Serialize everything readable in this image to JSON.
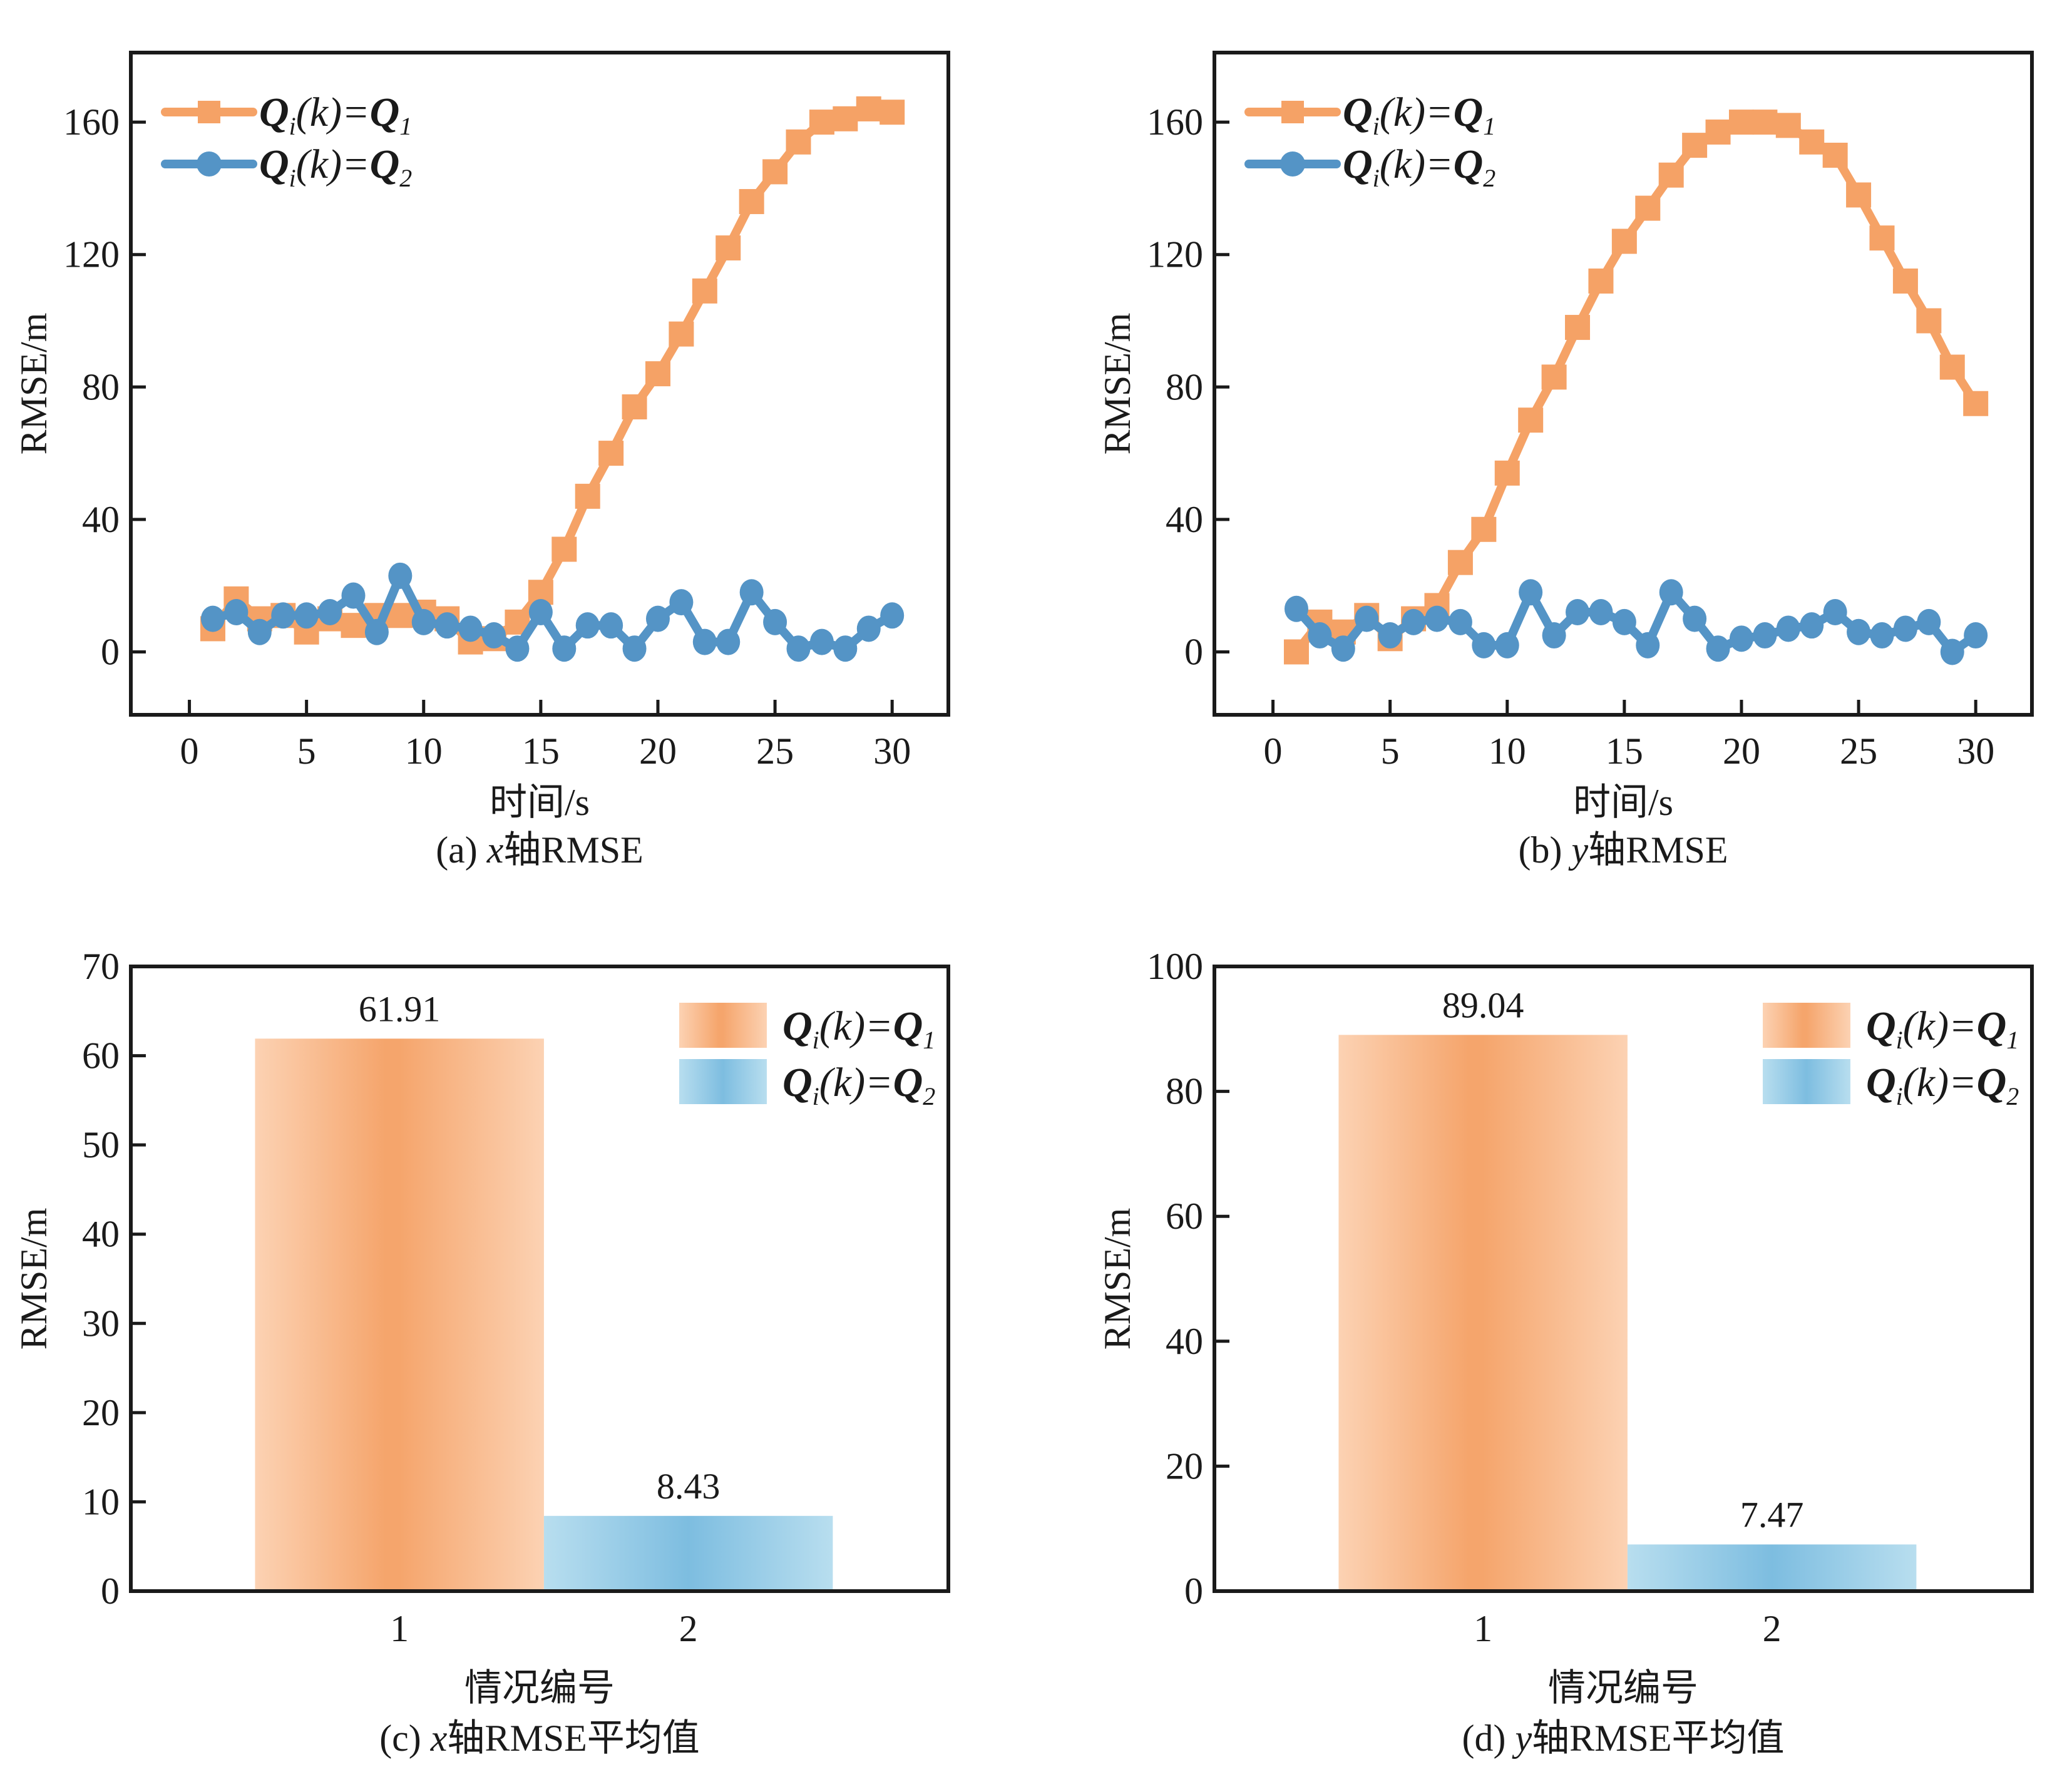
{
  "figure": {
    "legend_labels": {
      "q1": {
        "main": "Q",
        "sub_i": "i",
        "mid": "(k)=",
        "rhs": "Q",
        "sub_n": "1"
      },
      "q2": {
        "main": "Q",
        "sub_i": "i",
        "mid": "(k)=",
        "rhs": "Q",
        "sub_n": "2"
      }
    },
    "colors": {
      "q1_line": "#F5A266",
      "q2_line": "#5494C6",
      "q1_bar_edge": "#FCD2B3",
      "q1_bar_center": "#F5A56C",
      "q2_bar_edge": "#B8DEEF",
      "q2_bar_center": "#7DBDE0",
      "axis": "#1a1a1a"
    }
  },
  "chart_data": [
    {
      "id": "a",
      "type": "line",
      "caption": "(a) x轴RMSE",
      "caption_prefix": "(a) ",
      "caption_var": "x",
      "caption_suffix": "轴RMSE",
      "xlabel": "时间/s",
      "ylabel": "RMSE/m",
      "xlim": [
        -2.5,
        32.4
      ],
      "ylim": [
        -19,
        181
      ],
      "xticks": [
        0,
        5,
        10,
        15,
        20,
        25,
        30
      ],
      "yticks": [
        0,
        40,
        80,
        120,
        160
      ],
      "legend_position": "top-left",
      "x": [
        1,
        2,
        3,
        4,
        5,
        6,
        7,
        8,
        9,
        10,
        11,
        12,
        13,
        14,
        15,
        16,
        17,
        18,
        19,
        20,
        21,
        22,
        23,
        24,
        25,
        26,
        27,
        28,
        29,
        30
      ],
      "series": [
        {
          "name": "Qi(k)=Q1",
          "marker": "square",
          "color_key": "q1_line",
          "values": [
            7,
            16,
            10,
            11,
            6,
            10,
            8,
            11,
            11,
            12,
            10,
            3,
            4,
            9,
            18,
            31,
            47,
            60,
            74,
            84,
            96,
            109,
            122,
            136,
            145,
            154,
            160,
            161,
            164,
            163
          ]
        },
        {
          "name": "Qi(k)=Q2",
          "marker": "circle",
          "color_key": "q2_line",
          "values": [
            10,
            12,
            6,
            11,
            11,
            12,
            17,
            6,
            23,
            9,
            8,
            7,
            5,
            1,
            12,
            1,
            8,
            8,
            1,
            10,
            15,
            3,
            3,
            18,
            9,
            1,
            3,
            1,
            7,
            11
          ]
        }
      ]
    },
    {
      "id": "b",
      "type": "line",
      "caption": "(b) y轴RMSE",
      "caption_prefix": "(b) ",
      "caption_var": "y",
      "caption_suffix": "轴RMSE",
      "xlabel": "时间/s",
      "ylabel": "RMSE/m",
      "xlim": [
        -2.5,
        32.4
      ],
      "ylim": [
        -19,
        181
      ],
      "xticks": [
        0,
        5,
        10,
        15,
        20,
        25,
        30
      ],
      "yticks": [
        0,
        40,
        80,
        120,
        160
      ],
      "legend_position": "top-left",
      "x": [
        1,
        2,
        3,
        4,
        5,
        6,
        7,
        8,
        9,
        10,
        11,
        12,
        13,
        14,
        15,
        16,
        17,
        18,
        19,
        20,
        21,
        22,
        23,
        24,
        25,
        26,
        27,
        28,
        29,
        30
      ],
      "series": [
        {
          "name": "Qi(k)=Q1",
          "marker": "square",
          "color_key": "q1_line",
          "values": [
            0,
            9,
            6,
            11,
            4,
            10,
            14,
            27,
            37,
            54,
            70,
            83,
            98,
            112,
            124,
            134,
            144,
            153,
            157,
            160,
            160,
            159,
            154,
            150,
            138,
            125,
            112,
            100,
            86,
            75
          ]
        },
        {
          "name": "Qi(k)=Q2",
          "marker": "circle",
          "color_key": "q2_line",
          "values": [
            13,
            5,
            1,
            10,
            5,
            9,
            10,
            9,
            2,
            2,
            18,
            5,
            12,
            12,
            9,
            2,
            18,
            10,
            1,
            4,
            5,
            7,
            8,
            12,
            6,
            5,
            7,
            9,
            0,
            5
          ]
        }
      ]
    },
    {
      "id": "c",
      "type": "bar",
      "caption": "(c) x轴RMSE平均值",
      "caption_prefix": "(c) ",
      "caption_var": "x",
      "caption_suffix": "轴RMSE平均值",
      "xlabel": "情况编号",
      "ylabel": "RMSE/m",
      "categories": [
        "1",
        "2"
      ],
      "values": [
        61.91,
        8.43
      ],
      "value_labels": [
        "61.91",
        "8.43"
      ],
      "xlim": [
        0.07,
        2.9
      ],
      "ylim": [
        0,
        70
      ],
      "yticks": [
        0,
        10,
        20,
        30,
        40,
        50,
        60,
        70
      ],
      "legend_position": "top-right",
      "series_names": [
        "Qi(k)=Q1",
        "Qi(k)=Q2"
      ]
    },
    {
      "id": "d",
      "type": "bar",
      "caption": "(d) y轴RMSE平均值",
      "caption_prefix": "(d) ",
      "caption_var": "y",
      "caption_suffix": "轴RMSE平均值",
      "xlabel": "情况编号",
      "ylabel": "RMSE/m",
      "categories": [
        "1",
        "2"
      ],
      "values": [
        89.04,
        7.47
      ],
      "value_labels": [
        "89.04",
        "7.47"
      ],
      "xlim": [
        0.07,
        2.9
      ],
      "ylim": [
        0,
        100
      ],
      "yticks": [
        0,
        20,
        40,
        60,
        80,
        100
      ],
      "legend_position": "top-right",
      "series_names": [
        "Qi(k)=Q1",
        "Qi(k)=Q2"
      ]
    }
  ]
}
